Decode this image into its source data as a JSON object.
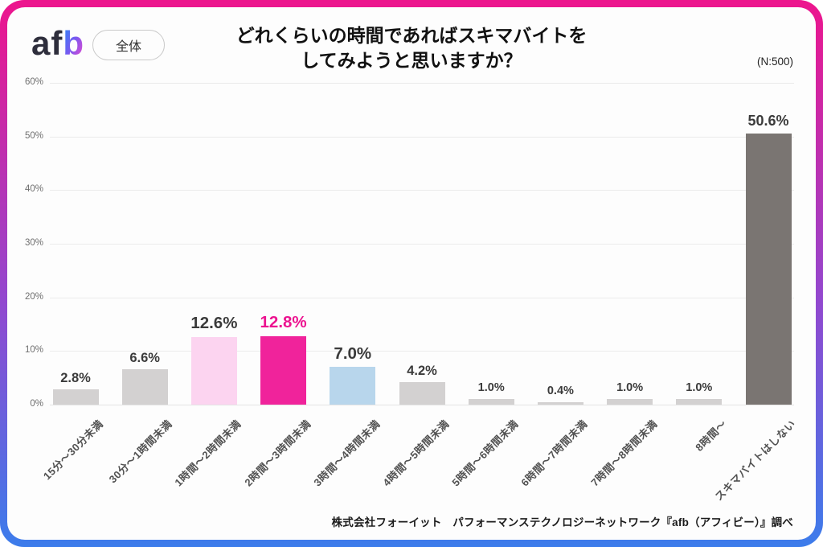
{
  "header": {
    "logo_af": "af",
    "logo_b": "b",
    "scope_label": "全体",
    "title_line1": "どれくらいの時間であればスキマバイトを",
    "title_line2": "してみようと思いますか？",
    "sample_label": "(N:500)"
  },
  "footer": {
    "source": "株式会社フォーイット　パフォーマンステクノロジーネットワーク『afb（アフィビー）』調べ"
  },
  "colors": {
    "border_gradient_top": "#ed158d",
    "border_gradient_mid": "#9248cf",
    "border_gradient_bottom": "#3c7ceb",
    "accent_magenta": "#f0239b",
    "light_pink": "#fcd4f0",
    "light_blue": "#b8d6ec",
    "neutral_gray": "#d3d1d1",
    "dark_gray": "#7a7572"
  },
  "chart_data": {
    "type": "bar",
    "title": "どれくらいの時間であればスキマバイトを してみようと思いますか？",
    "subtitle": "(N:500)",
    "xlabel": "",
    "ylabel": "",
    "ylim": [
      0,
      60
    ],
    "grid": true,
    "legend": false,
    "ytick_labels": [
      "0%",
      "10%",
      "20%",
      "30%",
      "40%",
      "50%",
      "60%"
    ],
    "categories": [
      "15分〜30分未満",
      "30分〜1時間未満",
      "1時間〜2時間未満",
      "2時間〜3時間未満",
      "3時間〜4時間未満",
      "4時間〜5時間未満",
      "5時間〜6時間未満",
      "6時間〜7時間未満",
      "7時間〜8時間未満",
      "8時間〜",
      "スキマバイトはしない"
    ],
    "values": [
      2.8,
      6.6,
      12.6,
      12.8,
      7.0,
      4.2,
      1.0,
      0.4,
      1.0,
      1.0,
      50.6
    ],
    "value_labels": [
      "2.8%",
      "6.6%",
      "12.6%",
      "12.8%",
      "7.0%",
      "4.2%",
      "1.0%",
      "0.4%",
      "1.0%",
      "1.0%",
      "50.6%"
    ],
    "bar_colors": [
      "#d3d1d1",
      "#d3d1d1",
      "#fcd4f0",
      "#f0239b",
      "#b8d6ec",
      "#d3d1d1",
      "#d3d1d1",
      "#d3d1d1",
      "#d3d1d1",
      "#d3d1d1",
      "#7a7572"
    ],
    "value_label_colors": [
      "#3b3b3b",
      "#3b3b3b",
      "#3b3b3b",
      "#ec1390",
      "#3b3b3b",
      "#3b3b3b",
      "#3b3b3b",
      "#3b3b3b",
      "#3b3b3b",
      "#3b3b3b",
      "#3b3b3b"
    ],
    "value_label_emphasis": [
      "medium",
      "medium",
      "large",
      "large",
      "large",
      "medium",
      "small",
      "small",
      "small",
      "small",
      "mlarge"
    ]
  }
}
